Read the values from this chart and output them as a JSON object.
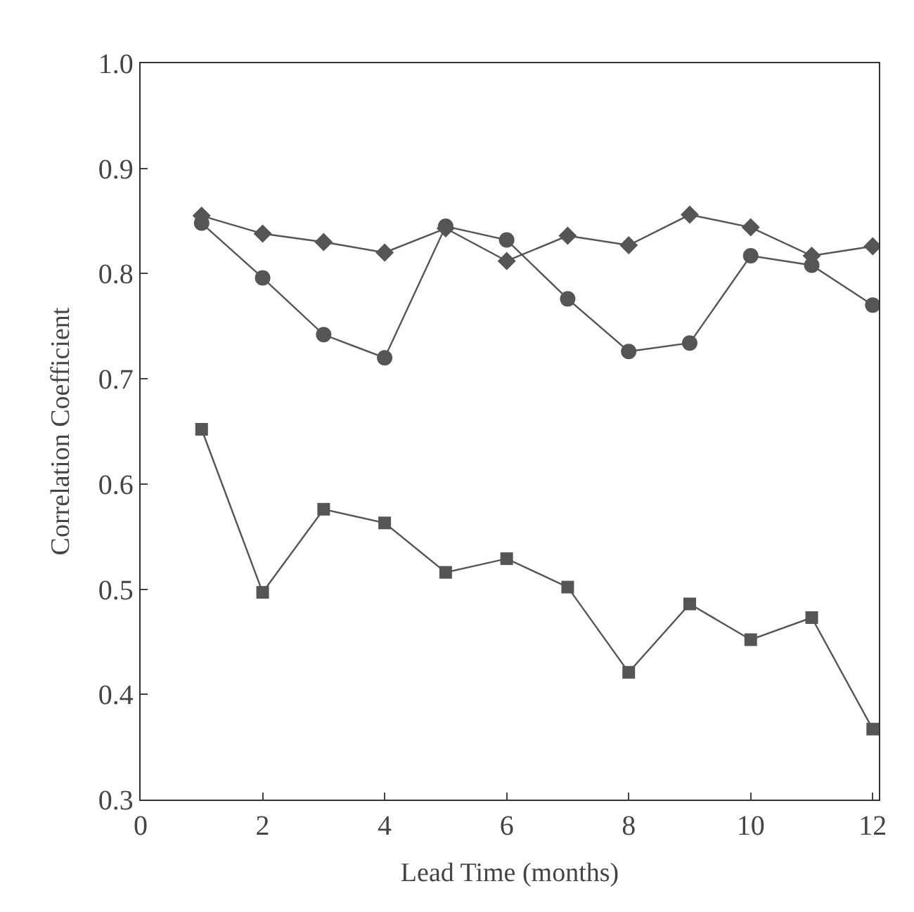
{
  "chart_data": {
    "type": "line",
    "xlabel": "Lead Time (months)",
    "ylabel": "Correlation Coefficient",
    "x": [
      1,
      2,
      3,
      4,
      5,
      6,
      7,
      8,
      9,
      10,
      11,
      12
    ],
    "xlim": [
      0,
      12.1
    ],
    "xticks": [
      0,
      2,
      4,
      6,
      8,
      10,
      12
    ],
    "ylim": [
      0.3,
      1.0
    ],
    "yticks": [
      {
        "value": 0.3,
        "label": "0.3"
      },
      {
        "value": 0.4,
        "label": "0.4"
      },
      {
        "value": 0.5,
        "label": "0.5"
      },
      {
        "value": 0.6,
        "label": "0.6"
      },
      {
        "value": 0.7,
        "label": "0.7"
      },
      {
        "value": 0.8,
        "label": "0.8"
      },
      {
        "value": 0.9,
        "label": "0.9"
      },
      {
        "value": 1.0,
        "label": "1.0"
      }
    ],
    "series": [
      {
        "color": "#555555",
        "marker": "diamond",
        "values": [
          0.855,
          0.838,
          0.83,
          0.82,
          0.843,
          0.812,
          0.836,
          0.827,
          0.856,
          0.844,
          0.817,
          0.826
        ]
      },
      {
        "color": "#555555",
        "marker": "circle",
        "values": [
          0.848,
          0.796,
          0.742,
          0.72,
          0.845,
          0.832,
          0.776,
          0.726,
          0.734,
          0.817,
          0.808,
          0.77
        ]
      },
      {
        "color": "#555555",
        "marker": "square",
        "values": [
          0.652,
          0.497,
          0.576,
          0.563,
          0.516,
          0.529,
          0.502,
          0.421,
          0.486,
          0.452,
          0.473,
          0.367
        ]
      }
    ]
  }
}
